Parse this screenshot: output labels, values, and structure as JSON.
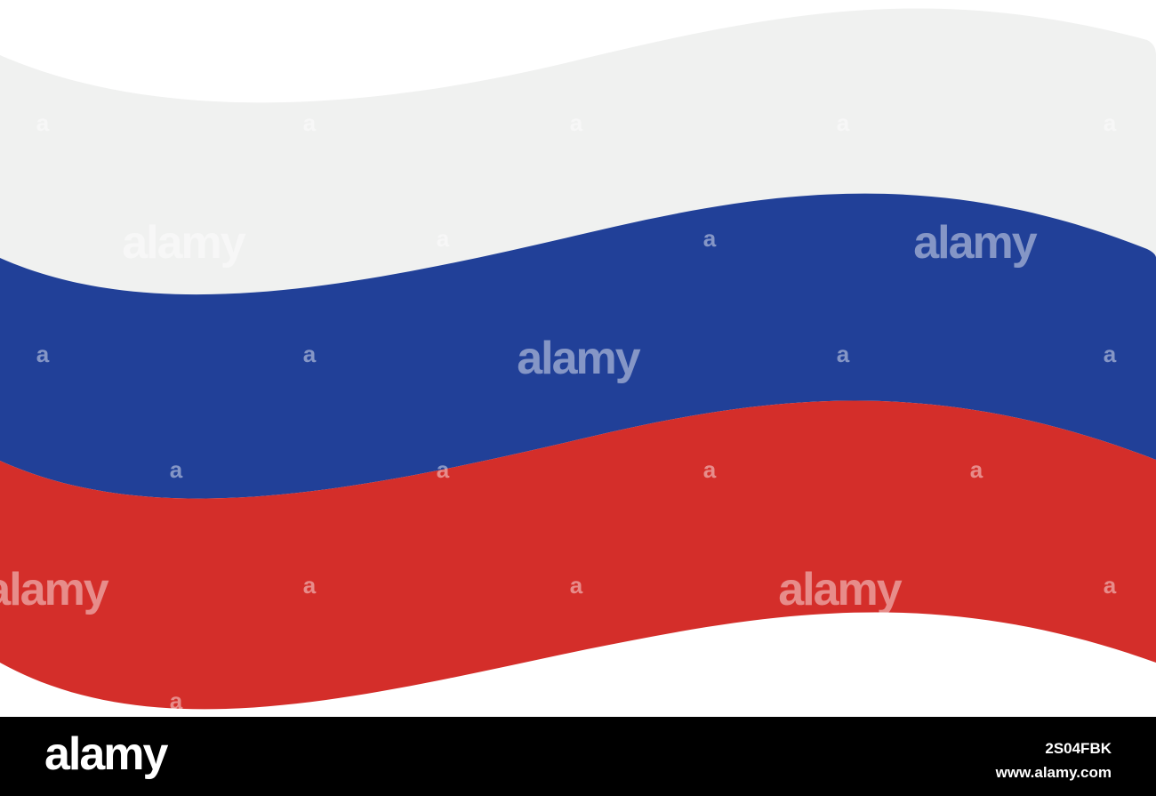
{
  "flag": {
    "colors": {
      "white": "#f0f1f0",
      "blue": "#214098",
      "red": "#d42e2a"
    }
  },
  "watermark": {
    "text": "alamy",
    "glyph": "a"
  },
  "footer": {
    "logo": "alamy",
    "image_id": "2S04FBK",
    "site": "www.alamy.com",
    "background": "#000000"
  }
}
